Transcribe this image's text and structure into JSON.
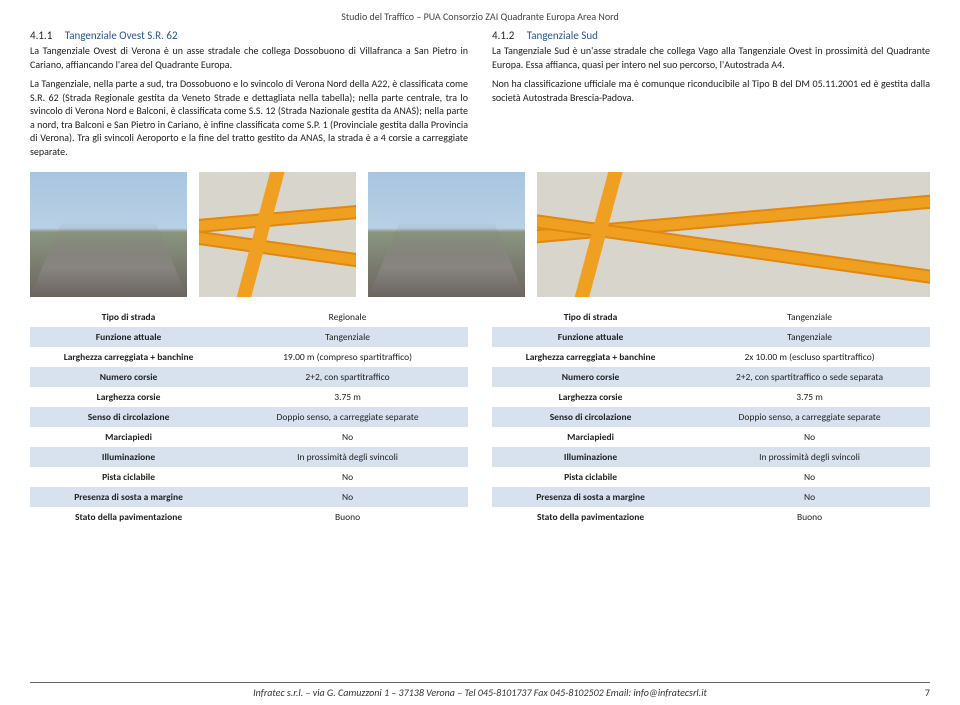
{
  "header": "Studio del Traffico – PUA Consorzio ZAI Quadrante Europa Area Nord",
  "left": {
    "num": "4.1.1",
    "title": "Tangenziale Ovest S.R. 62",
    "p1": "La Tangenziale Ovest di Verona è un asse stradale che collega Dossobuono di Villafranca a San Pietro in Cariano, affiancando l'area del Quadrante Europa.",
    "p2": "La Tangenziale, nella parte a sud, tra Dossobuono e lo svincolo di Verona Nord della A22, è classificata come S.R. 62 (Strada Regionale gestita da Veneto Strade e dettagliata nella tabella); nella parte centrale, tra lo svincolo di Verona Nord e Balconi, è classificata come S.S. 12 (Strada Nazionale gestita da ANAS); nella parte a nord, tra Balconi e San Pietro in Cariano, è infine classificata come S.P. 1 (Provinciale gestita dalla Provincia di Verona). Tra gli svincoli Aeroporto e la fine del tratto gestito da ANAS, la strada è a 4 corsie a carreggiate separate."
  },
  "right": {
    "num": "4.1.2",
    "title": "Tangenziale Sud",
    "p1": "La Tangenziale Sud è un'asse stradale che collega Vago alla Tangenziale Ovest in prossimità del Quadrante Europa. Essa affianca, quasi per intero nel suo percorso, l'Autostrada A4.",
    "p2": "Non ha classificazione ufficiale ma è comunque riconducibile al Tipo B del DM 05.11.2001 ed è gestita dalla società Autostrada Brescia-Padova."
  },
  "labels": {
    "tipo": "Tipo di strada",
    "funzione": "Funzione attuale",
    "larghezza_carr": "Larghezza carreggiata + banchine",
    "numero_corsie": "Numero corsie",
    "larghezza_corsie": "Larghezza corsie",
    "senso": "Senso di circolazione",
    "marciapiedi": "Marciapiedi",
    "illuminazione": "Illuminazione",
    "pista": "Pista ciclabile",
    "sosta": "Presenza di sosta a margine",
    "stato": "Stato della pavimentazione"
  },
  "table_left": {
    "tipo": "Regionale",
    "funzione": "Tangenziale",
    "larghezza_carr": "19.00 m (compreso spartitraffico)",
    "numero_corsie": "2+2, con spartitraffico",
    "larghezza_corsie": "3.75 m",
    "senso": "Doppio senso, a carreggiate separate",
    "marciapiedi": "No",
    "illuminazione": "In prossimità degli svincoli",
    "pista": "No",
    "sosta": "No",
    "stato": "Buono"
  },
  "table_right": {
    "tipo": "Tangenziale",
    "funzione": "Tangenziale",
    "larghezza_carr": "2x 10.00 m (escluso spartitraffico)",
    "numero_corsie": "2+2, con spartitraffico o sede separata",
    "larghezza_corsie": "3.75 m",
    "senso": "Doppio senso, a carreggiate separate",
    "marciapiedi": "No",
    "illuminazione": "In prossimità degli svincoli",
    "pista": "No",
    "sosta": "No",
    "stato": "Buono"
  },
  "styling": {
    "shade_color": "#d8e2ef",
    "title_color": "#2a5699",
    "font_size_body": 10,
    "font_size_table": 9.5
  },
  "footer": {
    "text": "Infratec s.r.l. – via G. Camuzzoni 1 – 37138 Verona – Tel 045-8101737 Fax 045-8102502 Email: info@infratecsrl.it",
    "page": "7"
  }
}
